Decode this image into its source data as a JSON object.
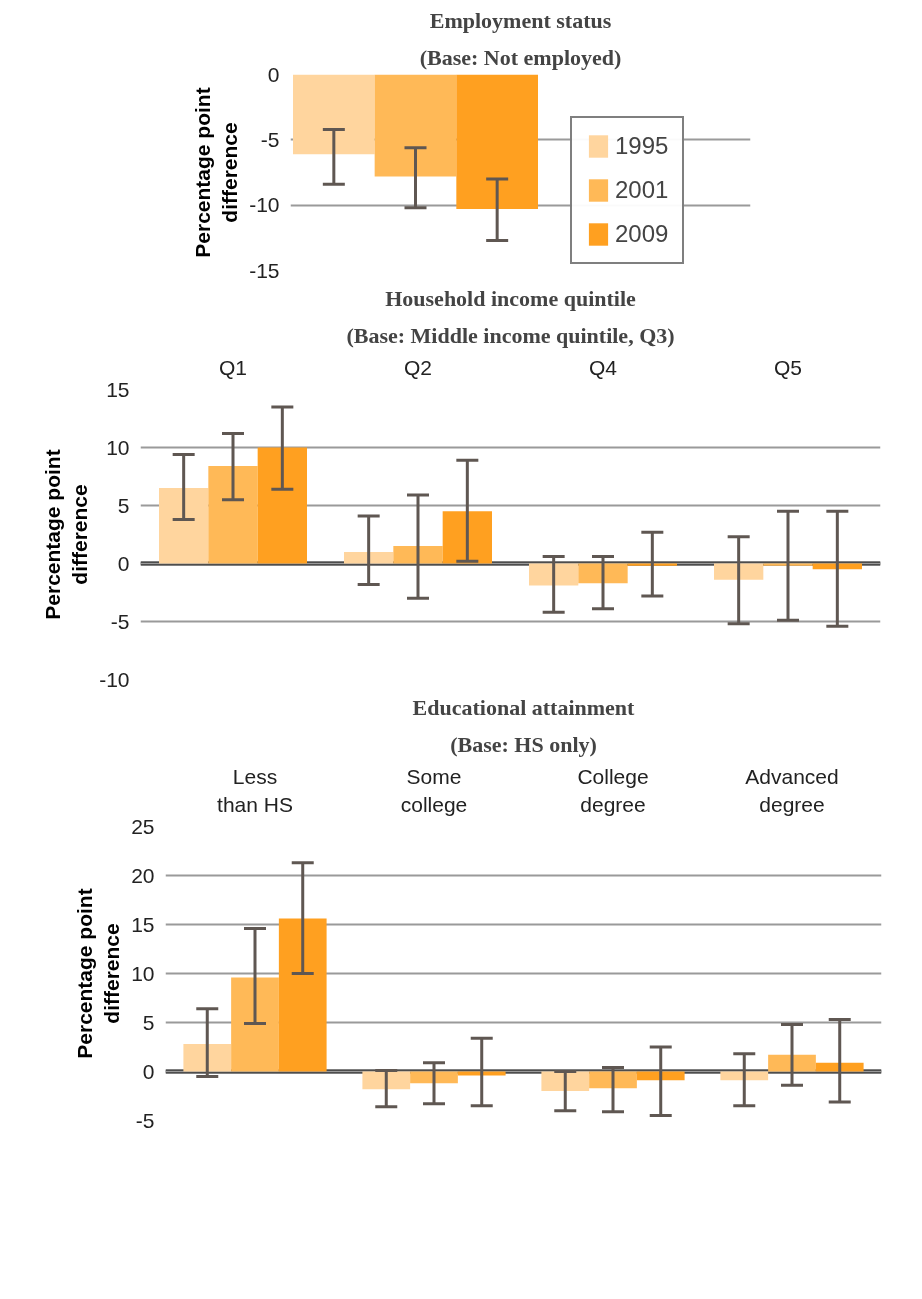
{
  "chart_data": [
    {
      "type": "bar",
      "title": "Employment status",
      "subtitle": "(Base: Not employed)",
      "ylabel": "Percentage point difference",
      "categories": [
        null
      ],
      "ylim": [
        -15,
        0
      ],
      "yticks": [
        -15,
        -10,
        -5,
        0
      ],
      "grid": "y",
      "legend": "right",
      "tick_labels": "y",
      "series": [
        {
          "name": "1995",
          "color": "#ffd59e",
          "values": [
            -6.1
          ],
          "errors": [
            [
              -8.4,
              -4.2
            ]
          ]
        },
        {
          "name": "2001",
          "color": "#ffb957",
          "values": [
            -7.8
          ],
          "errors": [
            [
              -10.2,
              -5.6
            ]
          ]
        },
        {
          "name": "2009",
          "color": "#ffa020",
          "values": [
            -10.3
          ],
          "errors": [
            [
              -12.7,
              -8.0
            ]
          ]
        }
      ]
    },
    {
      "type": "bar",
      "title": "Household income quintile",
      "subtitle": "(Base: Middle income quintile, Q3)",
      "ylabel": "Percentage point difference",
      "categories": [
        "Q1",
        "Q2",
        "Q4",
        "Q5"
      ],
      "ylim": [
        -10,
        15
      ],
      "yticks": [
        -10,
        -5,
        0,
        5,
        10,
        15
      ],
      "grid": "y",
      "series": [
        {
          "color": "#ffd59e",
          "values": [
            6.5,
            1.0,
            -1.9,
            -1.4
          ],
          "errors": [
            [
              3.8,
              9.4
            ],
            [
              -1.8,
              4.1
            ],
            [
              -4.2,
              0.6
            ],
            [
              -5.2,
              2.3
            ]
          ]
        },
        {
          "color": "#ffb957",
          "values": [
            8.4,
            1.5,
            -1.7,
            -0.2
          ],
          "errors": [
            [
              5.5,
              11.2
            ],
            [
              -3.0,
              5.9
            ],
            [
              -3.9,
              0.6
            ],
            [
              -4.9,
              4.5
            ]
          ]
        },
        {
          "color": "#ffa020",
          "values": [
            10.0,
            4.5,
            -0.2,
            -0.5
          ],
          "errors": [
            [
              6.4,
              13.5
            ],
            [
              0.2,
              8.9
            ],
            [
              -2.8,
              2.7
            ],
            [
              -5.4,
              4.5
            ]
          ]
        }
      ]
    },
    {
      "type": "bar",
      "title": "Educational attainment",
      "subtitle": "(Base: HS only)",
      "ylabel": "Percentage point difference",
      "categories": [
        "Less than HS",
        "Some college",
        "College degree",
        "Advanced degree"
      ],
      "ylim": [
        -5,
        25
      ],
      "yticks": [
        -5,
        0,
        5,
        10,
        15,
        20,
        25
      ],
      "grid": "y",
      "series": [
        {
          "color": "#ffd59e",
          "values": [
            2.8,
            -1.8,
            -2.0,
            -0.9
          ],
          "errors": [
            [
              -0.5,
              6.4
            ],
            [
              -3.6,
              0.1
            ],
            [
              -4.0,
              0.0
            ],
            [
              -3.5,
              1.8
            ]
          ]
        },
        {
          "color": "#ffb957",
          "values": [
            9.6,
            -1.2,
            -1.7,
            1.7
          ],
          "errors": [
            [
              4.9,
              14.6
            ],
            [
              -3.3,
              0.9
            ],
            [
              -4.1,
              0.4
            ],
            [
              -1.4,
              4.8
            ]
          ]
        },
        {
          "color": "#ffa020",
          "values": [
            15.6,
            -0.4,
            -0.9,
            0.9
          ],
          "errors": [
            [
              10.0,
              21.3
            ],
            [
              -3.5,
              3.4
            ],
            [
              -4.5,
              2.5
            ],
            [
              -3.1,
              5.3
            ]
          ]
        }
      ]
    }
  ]
}
